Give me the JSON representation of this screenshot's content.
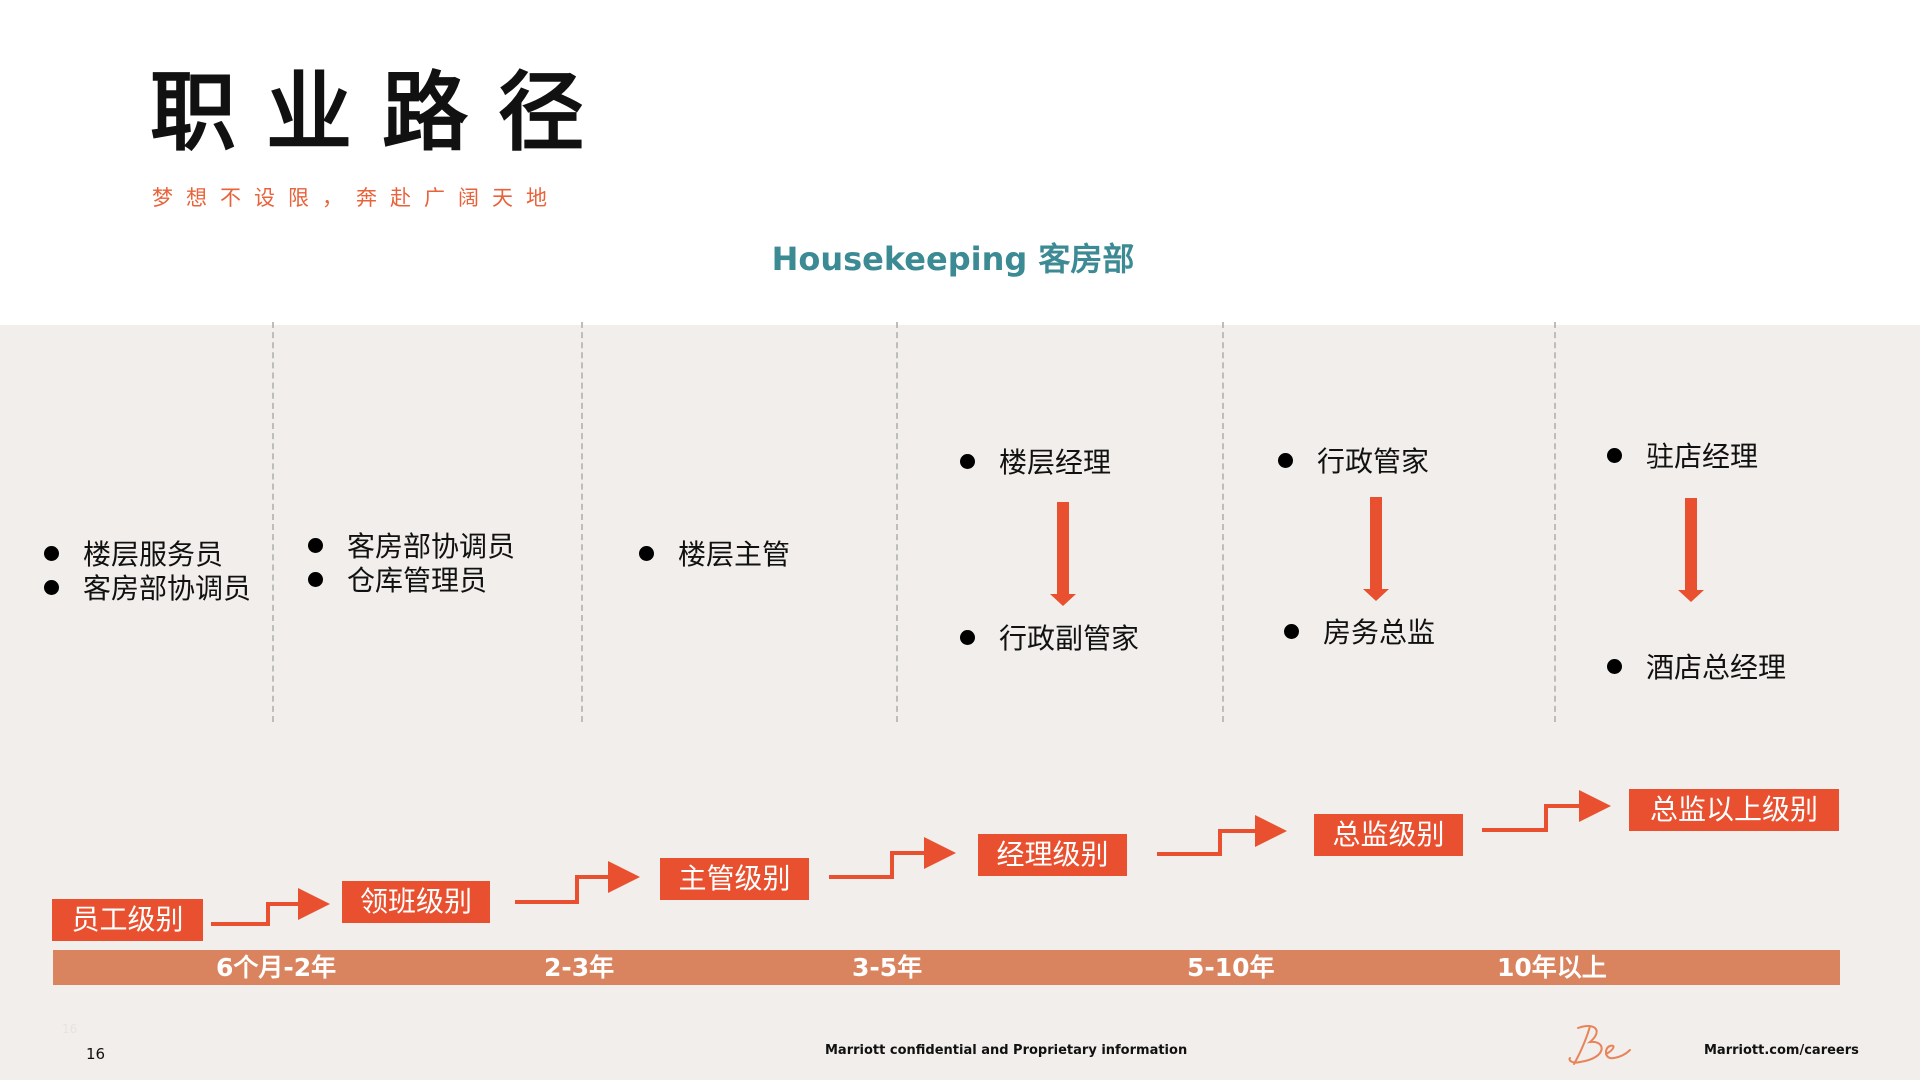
{
  "header": {
    "title": "职业路径",
    "subtitle": "梦想不设限，奔赴广阔天地",
    "department": "Housekeeping 客房部"
  },
  "columns": [
    {
      "roles": [
        "楼层服务员",
        "客房部协调员"
      ]
    },
    {
      "roles": [
        "客房部协调员",
        "仓库管理员"
      ]
    },
    {
      "roles": [
        "楼层主管"
      ]
    },
    {
      "roles": [
        "楼层经理",
        "行政副管家"
      ]
    },
    {
      "roles": [
        "行政管家",
        "房务总监"
      ]
    },
    {
      "roles": [
        "驻店经理",
        "酒店总经理"
      ]
    }
  ],
  "levels": [
    "员工级别",
    "领班级别",
    "主管级别",
    "经理级别",
    "总监级别",
    "总监以上级别"
  ],
  "timeline": [
    "6个月-2年",
    "2-3年",
    "3-5年",
    "5-10年",
    "10年以上"
  ],
  "footer": {
    "page_number": "16",
    "page_number_ghost": "16",
    "confidential": "Marriott confidential and Proprietary information",
    "url": "Marriott.com/careers",
    "logo_text": "Be"
  },
  "colors": {
    "accent": "#e8502f",
    "timeline": "#d9845f",
    "teal": "#3c8a94",
    "panel": "#f1eeeb"
  }
}
